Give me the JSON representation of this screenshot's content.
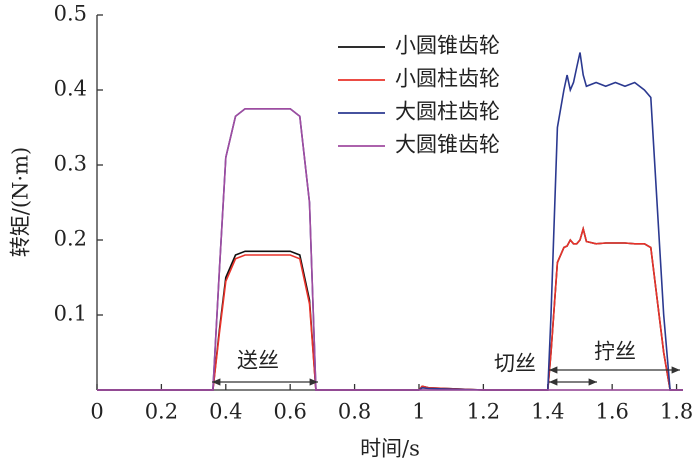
{
  "chart_data": {
    "type": "line",
    "xlabel": "时间/s",
    "ylabel": "转矩/(N·m)",
    "x": [
      0,
      0.36,
      0.38,
      0.4,
      0.43,
      0.46,
      0.6,
      0.63,
      0.66,
      0.68,
      1.0,
      1.01,
      1.03,
      1.2,
      1.4,
      1.41,
      1.43,
      1.45,
      1.46,
      1.47,
      1.48,
      1.49,
      1.5,
      1.51,
      1.52,
      1.55,
      1.58,
      1.61,
      1.64,
      1.67,
      1.7,
      1.72,
      1.76,
      1.78,
      1.82
    ],
    "series": [
      {
        "name": "小圆锥齿轮",
        "color": "#111111",
        "values": [
          0,
          0,
          0.08,
          0.15,
          0.18,
          0.185,
          0.185,
          0.18,
          0.12,
          0,
          0,
          0.005,
          0.003,
          0,
          0,
          0.05,
          0.17,
          0.19,
          0.192,
          0.2,
          0.195,
          0.195,
          0.2,
          0.215,
          0.198,
          0.195,
          0.196,
          0.196,
          0.196,
          0.195,
          0.195,
          0.19,
          0.05,
          0,
          0
        ]
      },
      {
        "name": "小圆柱齿轮",
        "color": "#e8322a",
        "values": [
          0,
          0,
          0.076,
          0.145,
          0.175,
          0.18,
          0.18,
          0.175,
          0.115,
          0,
          0,
          0.005,
          0.003,
          0,
          0,
          0.05,
          0.17,
          0.19,
          0.192,
          0.2,
          0.195,
          0.195,
          0.2,
          0.215,
          0.198,
          0.195,
          0.196,
          0.196,
          0.196,
          0.195,
          0.195,
          0.19,
          0.05,
          0,
          0
        ]
      },
      {
        "name": "大圆柱齿轮",
        "color": "#2b3990",
        "values": [
          0,
          0,
          0.16,
          0.31,
          0.365,
          0.375,
          0.375,
          0.365,
          0.25,
          0,
          0,
          0.003,
          0.002,
          0,
          0,
          0.1,
          0.35,
          0.4,
          0.42,
          0.4,
          0.41,
          0.43,
          0.45,
          0.42,
          0.405,
          0.41,
          0.405,
          0.41,
          0.405,
          0.41,
          0.4,
          0.39,
          0.1,
          0,
          0
        ]
      },
      {
        "name": "大圆锥齿轮",
        "color": "#a04ca0",
        "values": [
          0,
          0,
          0.16,
          0.31,
          0.365,
          0.375,
          0.375,
          0.365,
          0.25,
          0,
          0,
          0,
          0,
          0,
          0,
          0,
          0,
          0,
          0,
          0,
          0,
          0,
          0,
          0,
          0,
          0,
          0,
          0,
          0,
          0,
          0,
          0,
          0,
          0,
          0
        ]
      }
    ],
    "annotations": [
      "送丝",
      "切丝",
      "拧丝"
    ],
    "xlim": [
      0,
      1.82
    ],
    "ylim": [
      0,
      0.5
    ],
    "xticks": [
      0,
      0.2,
      0.4,
      0.6,
      0.8,
      1.0,
      1.2,
      1.4,
      1.6,
      1.8
    ],
    "yticks": [
      0.1,
      0.2,
      0.3,
      0.4,
      0.5
    ],
    "legend": "top"
  }
}
